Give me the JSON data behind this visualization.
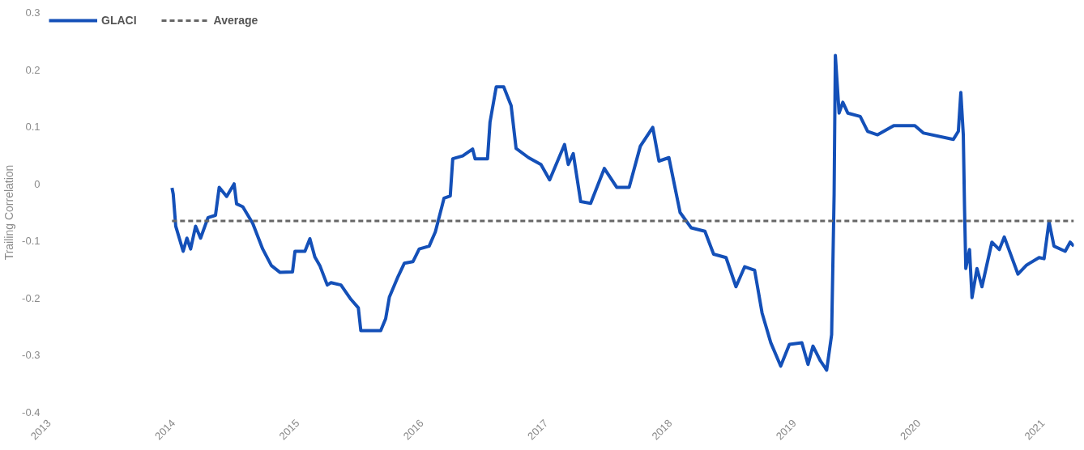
{
  "chart_data": {
    "type": "line",
    "ylabel": "Trailing Correlation",
    "xlim": [
      2013,
      2021.25
    ],
    "ylim": [
      -0.4,
      0.3
    ],
    "xticks": [
      2013,
      2014,
      2015,
      2016,
      2017,
      2018,
      2019,
      2020,
      2021
    ],
    "yticks": [
      -0.4,
      -0.3,
      -0.2,
      -0.1,
      0,
      0.1,
      0.2,
      0.3
    ],
    "grid": false,
    "legend": "top left",
    "line_style": "solid",
    "marker": "none",
    "series": [
      {
        "name": "GLACI",
        "color": "#1450b8",
        "x": [
          2013.99,
          2014.0,
          2014.02,
          2014.08,
          2014.11,
          2014.14,
          2014.18,
          2014.22,
          2014.28,
          2014.34,
          2014.37,
          2014.43,
          2014.49,
          2014.51,
          2014.56,
          2014.64,
          2014.72,
          2014.79,
          2014.86,
          2014.96,
          2014.98,
          2015.06,
          2015.1,
          2015.14,
          2015.18,
          2015.24,
          2015.27,
          2015.35,
          2015.43,
          2015.49,
          2015.51,
          2015.67,
          2015.71,
          2015.74,
          2015.81,
          2015.86,
          2015.93,
          2015.98,
          2016.06,
          2016.11,
          2016.18,
          2016.23,
          2016.25,
          2016.33,
          2016.41,
          2016.43,
          2016.53,
          2016.55,
          2016.6,
          2016.66,
          2016.72,
          2016.76,
          2016.86,
          2016.96,
          2017.03,
          2017.15,
          2017.18,
          2017.22,
          2017.28,
          2017.36,
          2017.47,
          2017.57,
          2017.67,
          2017.76,
          2017.86,
          2017.91,
          2017.99,
          2018.08,
          2018.17,
          2018.28,
          2018.35,
          2018.45,
          2018.53,
          2018.6,
          2018.68,
          2018.74,
          2018.81,
          2018.89,
          2018.96,
          2019.06,
          2019.11,
          2019.15,
          2019.21,
          2019.26,
          2019.3,
          2019.32,
          2019.33,
          2019.36,
          2019.39,
          2019.43,
          2019.53,
          2019.59,
          2019.67,
          2019.8,
          2019.97,
          2020.04,
          2020.28,
          2020.32,
          2020.34,
          2020.36,
          2020.37,
          2020.38,
          2020.41,
          2020.43,
          2020.47,
          2020.51,
          2020.59,
          2020.65,
          2020.69,
          2020.8,
          2020.87,
          2020.97,
          2021.01,
          2021.05,
          2021.09,
          2021.18,
          2021.22,
          2021.25
        ],
        "values": [
          -0.007,
          -0.018,
          -0.074,
          -0.118,
          -0.095,
          -0.114,
          -0.074,
          -0.095,
          -0.059,
          -0.055,
          -0.006,
          -0.022,
          0.0,
          -0.035,
          -0.04,
          -0.069,
          -0.114,
          -0.143,
          -0.155,
          -0.154,
          -0.118,
          -0.118,
          -0.096,
          -0.128,
          -0.143,
          -0.177,
          -0.173,
          -0.177,
          -0.202,
          -0.217,
          -0.257,
          -0.257,
          -0.236,
          -0.198,
          -0.162,
          -0.139,
          -0.136,
          -0.114,
          -0.109,
          -0.084,
          -0.025,
          -0.021,
          0.044,
          0.049,
          0.061,
          0.044,
          0.044,
          0.108,
          0.17,
          0.17,
          0.137,
          0.062,
          0.046,
          0.034,
          0.007,
          0.069,
          0.034,
          0.053,
          -0.031,
          -0.034,
          0.027,
          -0.006,
          -0.006,
          0.066,
          0.099,
          0.04,
          0.046,
          -0.05,
          -0.077,
          -0.083,
          -0.123,
          -0.129,
          -0.18,
          -0.145,
          -0.151,
          -0.226,
          -0.278,
          -0.319,
          -0.281,
          -0.278,
          -0.316,
          -0.284,
          -0.31,
          -0.326,
          -0.264,
          -0.018,
          0.225,
          0.124,
          0.143,
          0.124,
          0.118,
          0.092,
          0.086,
          0.102,
          0.102,
          0.089,
          0.078,
          0.092,
          0.16,
          0.086,
          -0.044,
          -0.148,
          -0.115,
          -0.199,
          -0.148,
          -0.18,
          -0.102,
          -0.115,
          -0.093,
          -0.158,
          -0.142,
          -0.129,
          -0.131,
          -0.066,
          -0.109,
          -0.118,
          -0.102,
          -0.109
        ]
      },
      {
        "name": "Average",
        "color": "#666666",
        "line_style": "dashed",
        "x": [
          2013.99,
          2021.25
        ],
        "values": [
          -0.065,
          -0.065
        ]
      }
    ]
  }
}
